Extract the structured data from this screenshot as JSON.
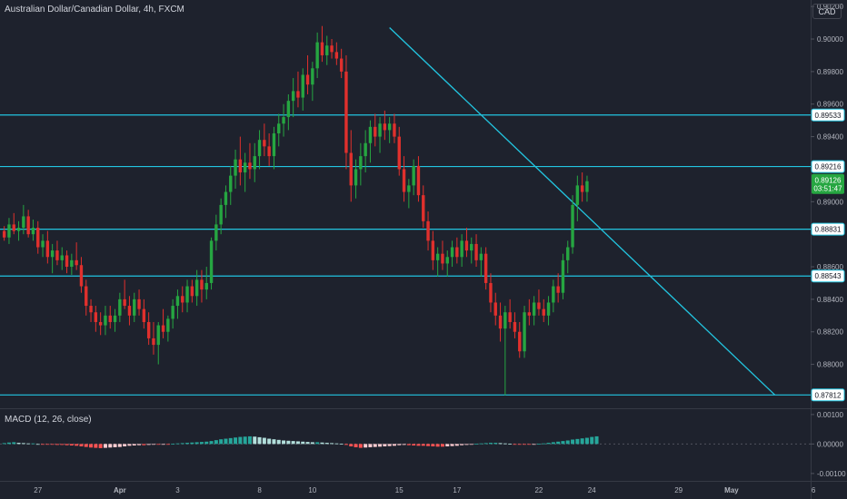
{
  "header": {
    "symbol_title": "Australian Dollar/Canadian Dollar, 4h, FXCM",
    "currency_label": "CAD"
  },
  "macd": {
    "label": "MACD (12, 26, close)",
    "y_ticks": [
      "0.00100",
      "0.00000",
      "-0.00100"
    ]
  },
  "colors": {
    "background": "#1e222d",
    "up": "#26a641",
    "down": "#e0302d",
    "level_line": "#22c5e0",
    "hist_pos_strong": "#26a69a",
    "hist_pos_weak": "#b2dfdb",
    "hist_neg_strong": "#ff5252",
    "hist_neg_weak": "#ffcdd2"
  },
  "chart_data": {
    "type": "candlestick",
    "ylim": [
      0.8773,
      0.9024
    ],
    "y_ticks": [
      "0.90200",
      "0.90000",
      "0.89800",
      "0.89600",
      "0.89400",
      "0.89000",
      "0.88600",
      "0.88400",
      "0.88200",
      "0.88000"
    ],
    "x_ticks": [
      "27",
      "Apr",
      "3",
      "8",
      "10",
      "15",
      "17",
      "22",
      "24",
      "29",
      "May",
      "6"
    ],
    "price_levels": [
      {
        "label": "0.89533",
        "value": 0.89533
      },
      {
        "label": "0.89216",
        "value": 0.89216
      },
      {
        "label": "0.88831",
        "value": 0.88831
      },
      {
        "label": "0.88543",
        "value": 0.88543
      },
      {
        "label": "0.87812",
        "value": 0.87812
      }
    ],
    "current_price": {
      "label": "0.89126",
      "value": 0.89126,
      "countdown": "03:51:47"
    },
    "trendline": {
      "from": {
        "index": 80,
        "price": 0.9007
      },
      "to": {
        "index": 160,
        "price": 0.87812
      }
    },
    "candles": [
      [
        0.8882,
        0.8885,
        0.8876,
        0.8878
      ],
      [
        0.8878,
        0.889,
        0.8874,
        0.8886
      ],
      [
        0.8886,
        0.8893,
        0.888,
        0.8882
      ],
      [
        0.8882,
        0.8888,
        0.8876,
        0.8884
      ],
      [
        0.8884,
        0.8898,
        0.888,
        0.8891
      ],
      [
        0.8891,
        0.8895,
        0.8878,
        0.888
      ],
      [
        0.888,
        0.8889,
        0.8876,
        0.8884
      ],
      [
        0.8884,
        0.8888,
        0.8868,
        0.8872
      ],
      [
        0.8872,
        0.888,
        0.8866,
        0.8876
      ],
      [
        0.8876,
        0.8882,
        0.8862,
        0.8866
      ],
      [
        0.8866,
        0.8874,
        0.8856,
        0.887
      ],
      [
        0.887,
        0.8876,
        0.8861,
        0.8864
      ],
      [
        0.8864,
        0.8872,
        0.8858,
        0.8867
      ],
      [
        0.8867,
        0.887,
        0.8856,
        0.886
      ],
      [
        0.886,
        0.8868,
        0.8855,
        0.8864
      ],
      [
        0.8864,
        0.8875,
        0.8858,
        0.8861
      ],
      [
        0.8861,
        0.8866,
        0.8844,
        0.8848
      ],
      [
        0.8848,
        0.8852,
        0.883,
        0.8836
      ],
      [
        0.8836,
        0.884,
        0.8826,
        0.8832
      ],
      [
        0.8832,
        0.8836,
        0.882,
        0.8826
      ],
      [
        0.8826,
        0.8832,
        0.8818,
        0.8824
      ],
      [
        0.8824,
        0.8836,
        0.8818,
        0.883
      ],
      [
        0.883,
        0.8836,
        0.8822,
        0.8826
      ],
      [
        0.8826,
        0.8834,
        0.882,
        0.883
      ],
      [
        0.883,
        0.8844,
        0.8826,
        0.884
      ],
      [
        0.884,
        0.8852,
        0.8834,
        0.8836
      ],
      [
        0.8836,
        0.8842,
        0.8824,
        0.883
      ],
      [
        0.883,
        0.8844,
        0.8826,
        0.884
      ],
      [
        0.884,
        0.8846,
        0.883,
        0.8834
      ],
      [
        0.8834,
        0.884,
        0.8822,
        0.8826
      ],
      [
        0.8826,
        0.8832,
        0.8812,
        0.8816
      ],
      [
        0.8816,
        0.8826,
        0.8806,
        0.8812
      ],
      [
        0.8812,
        0.8826,
        0.88,
        0.8824
      ],
      [
        0.8824,
        0.8834,
        0.8816,
        0.882
      ],
      [
        0.882,
        0.883,
        0.8814,
        0.8828
      ],
      [
        0.8828,
        0.884,
        0.8822,
        0.8836
      ],
      [
        0.8836,
        0.8846,
        0.8828,
        0.8842
      ],
      [
        0.8842,
        0.8848,
        0.8832,
        0.8838
      ],
      [
        0.8838,
        0.8852,
        0.8832,
        0.8848
      ],
      [
        0.8848,
        0.8852,
        0.8838,
        0.8842
      ],
      [
        0.8842,
        0.8858,
        0.8836,
        0.8852
      ],
      [
        0.8852,
        0.8858,
        0.8838,
        0.8846
      ],
      [
        0.8846,
        0.886,
        0.884,
        0.885
      ],
      [
        0.885,
        0.8878,
        0.8846,
        0.8876
      ],
      [
        0.8876,
        0.8892,
        0.887,
        0.8886
      ],
      [
        0.8886,
        0.8902,
        0.888,
        0.8898
      ],
      [
        0.8898,
        0.891,
        0.889,
        0.8906
      ],
      [
        0.8906,
        0.8922,
        0.8898,
        0.8916
      ],
      [
        0.8916,
        0.8932,
        0.8908,
        0.8926
      ],
      [
        0.8926,
        0.894,
        0.891,
        0.8918
      ],
      [
        0.8918,
        0.893,
        0.8906,
        0.8924
      ],
      [
        0.8924,
        0.8936,
        0.8914,
        0.892
      ],
      [
        0.892,
        0.8936,
        0.8912,
        0.8928
      ],
      [
        0.8928,
        0.8944,
        0.892,
        0.8938
      ],
      [
        0.8938,
        0.8948,
        0.8928,
        0.8934
      ],
      [
        0.8934,
        0.8942,
        0.8922,
        0.8928
      ],
      [
        0.8928,
        0.8946,
        0.892,
        0.8942
      ],
      [
        0.8942,
        0.8954,
        0.8934,
        0.8948
      ],
      [
        0.8948,
        0.896,
        0.894,
        0.8952
      ],
      [
        0.8952,
        0.8966,
        0.8944,
        0.8962
      ],
      [
        0.8962,
        0.8976,
        0.8952,
        0.8968
      ],
      [
        0.8968,
        0.898,
        0.8958,
        0.8964
      ],
      [
        0.8964,
        0.8982,
        0.8956,
        0.8978
      ],
      [
        0.8978,
        0.899,
        0.8966,
        0.8972
      ],
      [
        0.8972,
        0.8986,
        0.8962,
        0.8982
      ],
      [
        0.8982,
        0.9004,
        0.8976,
        0.8998
      ],
      [
        0.8998,
        0.9008,
        0.8986,
        0.899
      ],
      [
        0.899,
        0.9002,
        0.8984,
        0.8996
      ],
      [
        0.8996,
        0.9,
        0.8988,
        0.8992
      ],
      [
        0.8992,
        0.8998,
        0.8984,
        0.8988
      ],
      [
        0.8988,
        0.8994,
        0.8976,
        0.898
      ],
      [
        0.898,
        0.899,
        0.892,
        0.893
      ],
      [
        0.893,
        0.8944,
        0.89,
        0.891
      ],
      [
        0.891,
        0.8926,
        0.8902,
        0.892
      ],
      [
        0.892,
        0.8936,
        0.891,
        0.8928
      ],
      [
        0.8928,
        0.8944,
        0.8918,
        0.8936
      ],
      [
        0.8936,
        0.895,
        0.8924,
        0.8946
      ],
      [
        0.8946,
        0.8954,
        0.8934,
        0.894
      ],
      [
        0.894,
        0.8952,
        0.893,
        0.8948
      ],
      [
        0.8948,
        0.8956,
        0.8938,
        0.8944
      ],
      [
        0.8944,
        0.8952,
        0.8936,
        0.8948
      ],
      [
        0.8948,
        0.8954,
        0.8936,
        0.894
      ],
      [
        0.894,
        0.8946,
        0.8916,
        0.892
      ],
      [
        0.892,
        0.8928,
        0.89,
        0.8906
      ],
      [
        0.8906,
        0.8914,
        0.8896,
        0.891
      ],
      [
        0.891,
        0.8926,
        0.8904,
        0.8922
      ],
      [
        0.8922,
        0.8928,
        0.89,
        0.8904
      ],
      [
        0.8904,
        0.891,
        0.8884,
        0.8888
      ],
      [
        0.8888,
        0.8894,
        0.887,
        0.8876
      ],
      [
        0.8876,
        0.8882,
        0.8858,
        0.8864
      ],
      [
        0.8864,
        0.8872,
        0.8854,
        0.8868
      ],
      [
        0.8868,
        0.8876,
        0.8858,
        0.8862
      ],
      [
        0.8862,
        0.887,
        0.8854,
        0.8866
      ],
      [
        0.8866,
        0.8876,
        0.886,
        0.8872
      ],
      [
        0.8872,
        0.8878,
        0.8862,
        0.8866
      ],
      [
        0.8866,
        0.888,
        0.886,
        0.8876
      ],
      [
        0.8876,
        0.8884,
        0.8866,
        0.887
      ],
      [
        0.887,
        0.8878,
        0.8862,
        0.8874
      ],
      [
        0.8874,
        0.888,
        0.886,
        0.8864
      ],
      [
        0.8864,
        0.8872,
        0.8854,
        0.8868
      ],
      [
        0.8868,
        0.8872,
        0.8846,
        0.885
      ],
      [
        0.885,
        0.8856,
        0.8832,
        0.8838
      ],
      [
        0.8838,
        0.8844,
        0.8824,
        0.883
      ],
      [
        0.883,
        0.8838,
        0.8814,
        0.8822
      ],
      [
        0.8822,
        0.8836,
        0.8781,
        0.8832
      ],
      [
        0.8832,
        0.884,
        0.8822,
        0.8826
      ],
      [
        0.8826,
        0.8832,
        0.8816,
        0.882
      ],
      [
        0.882,
        0.8826,
        0.8804,
        0.8808
      ],
      [
        0.8808,
        0.8836,
        0.8804,
        0.8832
      ],
      [
        0.8832,
        0.884,
        0.8824,
        0.883
      ],
      [
        0.883,
        0.8842,
        0.8824,
        0.8838
      ],
      [
        0.8838,
        0.8846,
        0.883,
        0.8834
      ],
      [
        0.8834,
        0.884,
        0.8826,
        0.883
      ],
      [
        0.883,
        0.8842,
        0.8824,
        0.8838
      ],
      [
        0.8838,
        0.8852,
        0.8832,
        0.8848
      ],
      [
        0.8848,
        0.8856,
        0.8838,
        0.8844
      ],
      [
        0.8844,
        0.8868,
        0.884,
        0.8864
      ],
      [
        0.8864,
        0.8876,
        0.8856,
        0.8872
      ],
      [
        0.8872,
        0.8904,
        0.8868,
        0.8898
      ],
      [
        0.8898,
        0.8916,
        0.8888,
        0.891
      ],
      [
        0.891,
        0.8918,
        0.89,
        0.8906
      ],
      [
        0.8906,
        0.8916,
        0.89,
        0.89126
      ]
    ],
    "macd_histogram": [
      3e-05,
      5e-05,
      6e-05,
      4e-05,
      3e-05,
      2e-05,
      2e-05,
      0.0,
      -1e-05,
      -2e-05,
      -2e-05,
      -3e-05,
      -3e-05,
      -4e-05,
      -5e-05,
      -6e-05,
      -8e-05,
      -0.0001,
      -0.00012,
      -0.00013,
      -0.00014,
      -0.00013,
      -0.00012,
      -0.00011,
      -0.0001,
      -8e-05,
      -6e-05,
      -5e-05,
      -4e-05,
      -4e-05,
      -3e-05,
      -2e-05,
      -2e-05,
      -1e-05,
      -1e-05,
      1e-05,
      2e-05,
      3e-05,
      4e-05,
      5e-05,
      6e-05,
      7e-05,
      8e-05,
      0.0001,
      0.00013,
      0.00016,
      0.00018,
      0.0002,
      0.00022,
      0.00024,
      0.00025,
      0.00026,
      0.00025,
      0.00023,
      0.00021,
      0.00018,
      0.00016,
      0.00014,
      0.00012,
      0.00011,
      0.0001,
      9e-05,
      8e-05,
      7e-05,
      6e-05,
      6e-05,
      5e-05,
      4e-05,
      3e-05,
      2e-05,
      1e-05,
      -3e-05,
      -8e-05,
      -0.00011,
      -0.00013,
      -0.00012,
      -0.00011,
      -0.0001,
      -9e-05,
      -8e-05,
      -7e-05,
      -6e-05,
      -4e-05,
      -3e-05,
      -4e-05,
      -5e-05,
      -6e-05,
      -6e-05,
      -7e-05,
      -8e-05,
      -9e-05,
      -9e-05,
      -8e-05,
      -7e-05,
      -6e-05,
      -4e-05,
      -3e-05,
      -1e-05,
      1e-05,
      2e-05,
      3e-05,
      4e-05,
      4e-05,
      3e-05,
      2e-05,
      1e-05,
      -1e-05,
      -2e-05,
      -2e-05,
      -2e-05,
      -1e-05,
      1e-05,
      2e-05,
      4e-05,
      6e-05,
      8e-05,
      0.0001,
      0.00012,
      0.00015,
      0.00017,
      0.00019,
      0.00021,
      0.00024,
      0.00026
    ]
  }
}
